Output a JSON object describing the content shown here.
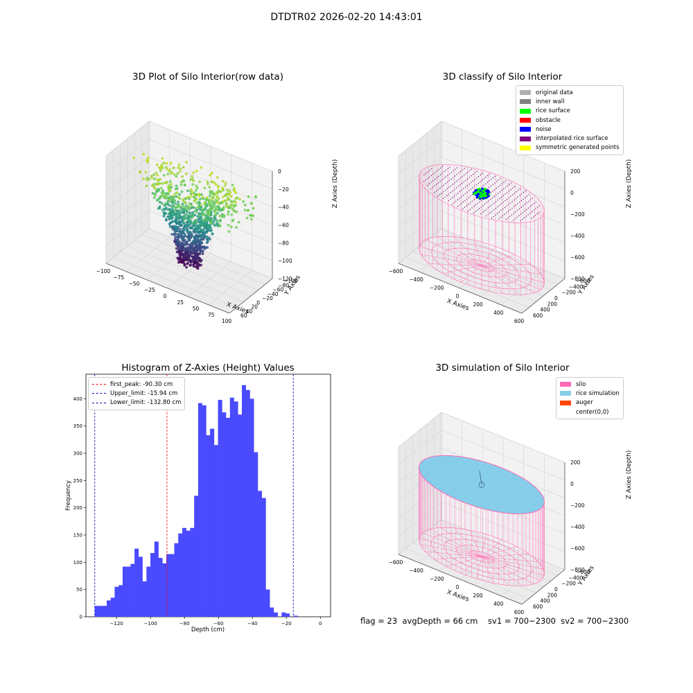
{
  "figure": {
    "suptitle": "DTDTR02 2026-02-20 14:43:01",
    "status_line": "flag = 23  avgDepth = 66 cm    sv1 = 700~2300  sv2 = 700~2300"
  },
  "chart_data": [
    {
      "type": "scatter",
      "title": "3D Plot of Silo Interior(row data)",
      "xlabel": "X Axies",
      "ylabel": "Y Axies",
      "zlabel": "Z Axies (Depth)",
      "xticks": [
        "−100",
        "−75",
        "−50",
        "−25",
        "0",
        "25",
        "50",
        "75",
        "100"
      ],
      "yticks": [
        "−100",
        "−80",
        "−60",
        "−40",
        "−20",
        "0",
        "20",
        "40",
        "60"
      ],
      "zticks": [
        "−120",
        "−100",
        "−80",
        "−60",
        "−40",
        "−20",
        "0"
      ],
      "colormap": "viridis",
      "points_note": ""
    },
    {
      "type": "scatter",
      "title": "3D classify of Silo Interior",
      "xlabel": "X Axies",
      "ylabel": "Y Axies",
      "zlabel": "Z Axies (Depth)",
      "xticks": [
        "−600",
        "−400",
        "−200",
        "0",
        "200",
        "400",
        "600"
      ],
      "yticks": [
        "−600",
        "−400",
        "−200",
        "0",
        "200",
        "400",
        "600"
      ],
      "zticks": [
        "−800",
        "−600",
        "−400",
        "−200",
        "0",
        "200"
      ],
      "legend": [
        {
          "label": "original data",
          "color": "#b0b0b0"
        },
        {
          "label": "inner wall",
          "color": "#808080"
        },
        {
          "label": "rice surface",
          "color": "#00ff00"
        },
        {
          "label": "obstacle",
          "color": "#ff0000"
        },
        {
          "label": "noise",
          "color": "#0000ff"
        },
        {
          "label": "interpolated rice surface",
          "color": "#800080"
        },
        {
          "label": "symmetric generated points",
          "color": "#ffff00"
        }
      ],
      "silo_color": "#ff69b4"
    },
    {
      "type": "bar",
      "title": "Histogram of Z-Axies (Height) Values",
      "xlabel": "Depth (cm)",
      "ylabel": "Frequency",
      "xlim": [
        -138,
        6
      ],
      "ylim": [
        0,
        445
      ],
      "xticks": [
        -120,
        -100,
        -80,
        -60,
        -40,
        -20,
        0
      ],
      "xtick_labels": [
        "−120",
        "−100",
        "−80",
        "−60",
        "−40",
        "−20",
        "0"
      ],
      "yticks": [
        0,
        50,
        100,
        150,
        200,
        250,
        300,
        350,
        400
      ],
      "bar_color": "#4a4aff",
      "bin_start": -132.8,
      "bin_width": 2.34,
      "values": [
        20,
        20,
        20,
        30,
        35,
        55,
        58,
        92,
        92,
        97,
        125,
        110,
        65,
        92,
        117,
        138,
        108,
        98,
        115,
        115,
        135,
        153,
        163,
        158,
        163,
        222,
        392,
        388,
        333,
        345,
        315,
        398,
        375,
        365,
        402,
        395,
        371,
        425,
        416,
        400,
        302,
        231,
        218,
        50,
        17,
        8,
        0,
        8,
        6,
        0,
        2
      ],
      "vlines": [
        {
          "label": "first_peak: -90.30 cm",
          "x": -90.3,
          "color": "#ff0000"
        },
        {
          "label": "Upper_limit: -15.94 cm",
          "x": -15.94,
          "color": "#0000bb"
        },
        {
          "label": "Lower_limit: -132.80 cm",
          "x": -132.8,
          "color": "#0000bb"
        }
      ]
    },
    {
      "type": "scatter",
      "title": "3D simulation of Silo Interior",
      "xlabel": "X Axies",
      "ylabel": "Y Axies",
      "zlabel": "Z Axies (Depth)",
      "xticks": [
        "−600",
        "−400",
        "−200",
        "0",
        "200",
        "400",
        "600"
      ],
      "yticks": [
        "−600",
        "−400",
        "−200",
        "0",
        "200",
        "400",
        "600"
      ],
      "zticks": [
        "−800",
        "−600",
        "−400",
        "−200",
        "0",
        "200"
      ],
      "legend": [
        {
          "label": "silo",
          "color": "#ff69b4"
        },
        {
          "label": "rice simulation",
          "color": "#87ceeb"
        },
        {
          "label": "auger",
          "color": "#ff4500"
        },
        {
          "label": "center(0,0)",
          "color": "#ffffff"
        }
      ]
    }
  ]
}
